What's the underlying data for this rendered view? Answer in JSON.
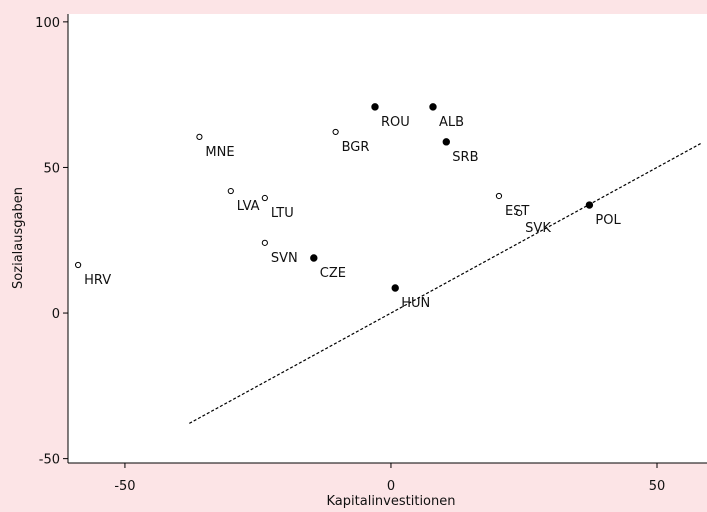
{
  "chart_data": {
    "type": "scatter",
    "xlabel": "Kapitalinvestitionen",
    "ylabel": "Sozialausgaben",
    "xlim": [
      -60.7,
      59.4
    ],
    "ylim": [
      -51.5,
      102.7
    ],
    "xticks": [
      -50,
      0,
      50
    ],
    "yticks": [
      -50,
      0,
      50,
      100
    ],
    "points": {
      "labels": [
        "HRV",
        "MNE",
        "LVA",
        "LTU",
        "SVN",
        "CZE",
        "BGR",
        "ROU",
        "ALB",
        "SRB",
        "HUN",
        "EST",
        "SVK",
        "POL"
      ],
      "x": [
        -58.8,
        -36.0,
        -30.1,
        -23.7,
        -23.7,
        -14.5,
        -10.4,
        -3.0,
        7.9,
        10.4,
        0.8,
        20.3,
        24.1,
        37.3
      ],
      "values": [
        16.5,
        60.5,
        41.9,
        39.5,
        24.1,
        18.9,
        62.2,
        70.8,
        70.8,
        58.8,
        8.6,
        40.2,
        34.4,
        37.1
      ],
      "filled": [
        false,
        false,
        false,
        false,
        false,
        true,
        false,
        true,
        true,
        true,
        true,
        false,
        false,
        true
      ]
    },
    "reference_line": {
      "x": [
        -37.9,
        58.2
      ],
      "values": [
        -37.9,
        58.2
      ],
      "dashed": true
    }
  }
}
